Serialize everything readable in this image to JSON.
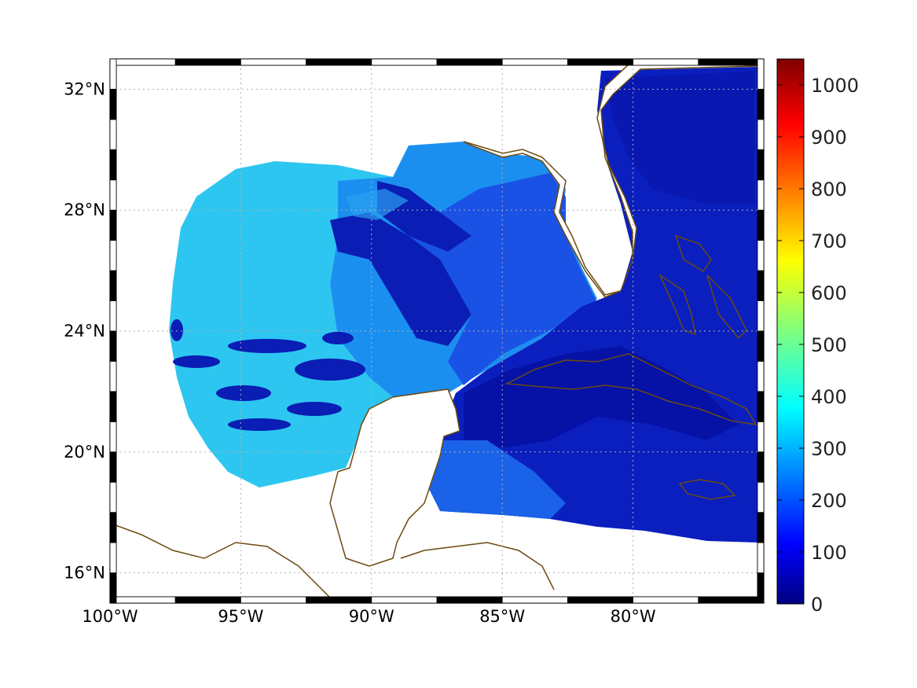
{
  "map": {
    "lon_range": [
      -100,
      -75
    ],
    "lat_range": [
      15,
      33
    ],
    "lon_ticks": [
      {
        "value": -100,
        "label": "100°W"
      },
      {
        "value": -95,
        "label": "95°W"
      },
      {
        "value": -90,
        "label": "90°W"
      },
      {
        "value": -85,
        "label": "85°W"
      },
      {
        "value": -80,
        "label": "80°W"
      }
    ],
    "lat_ticks": [
      {
        "value": 32,
        "label": "32°N"
      },
      {
        "value": 28,
        "label": "28°N"
      },
      {
        "value": 24,
        "label": "24°N"
      },
      {
        "value": 20,
        "label": "20°N"
      },
      {
        "value": 16,
        "label": "16°N"
      }
    ],
    "grid": "dotted",
    "frame": "black-white-checkered",
    "coastline_color": "#6b4a10"
  },
  "colorbar": {
    "range": [
      0,
      1050
    ],
    "ticks": [
      0,
      100,
      200,
      300,
      400,
      500,
      600,
      700,
      800,
      900,
      1000
    ],
    "labels": [
      "0",
      "100",
      "200",
      "300",
      "400",
      "500",
      "600",
      "700",
      "800",
      "900",
      "1000"
    ],
    "colormap": "jet",
    "colors": [
      "#00007f",
      "#0000ff",
      "#007fff",
      "#00ffff",
      "#7fff7f",
      "#ffff00",
      "#ff7f00",
      "#ff0000",
      "#7f0000"
    ]
  }
}
